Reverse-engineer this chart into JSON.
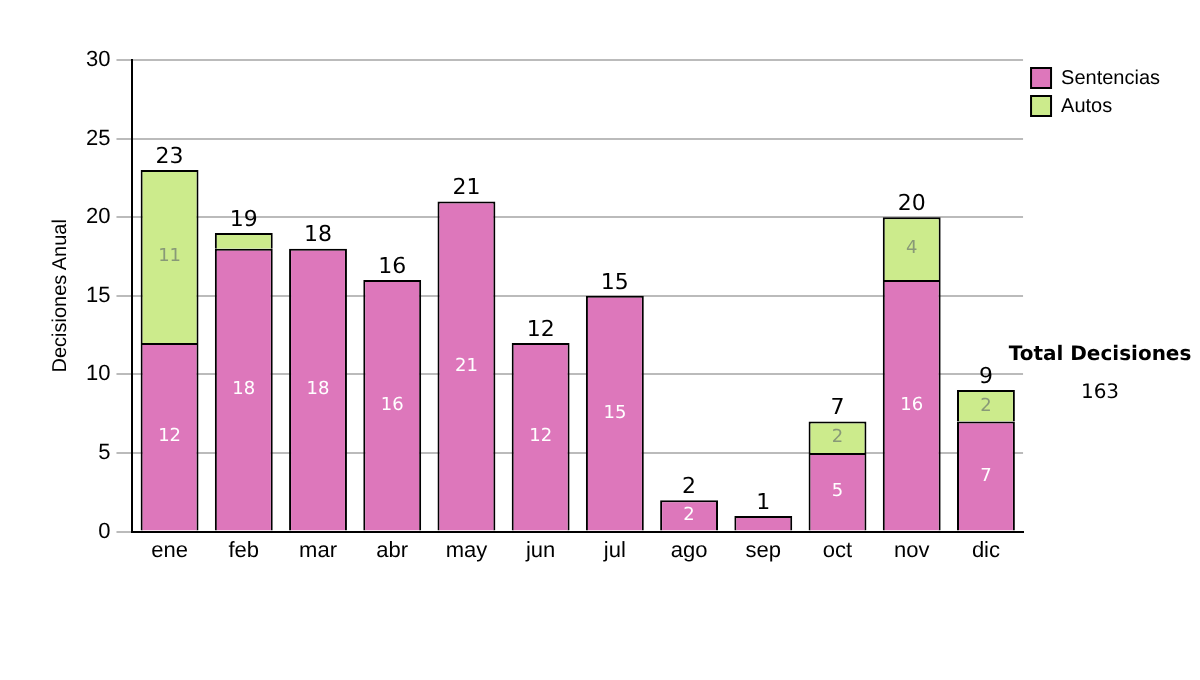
{
  "chart_data": {
    "type": "bar",
    "stacked": true,
    "ylabel": "Decisiones Anual",
    "categories": [
      "ene",
      "feb",
      "mar",
      "abr",
      "may",
      "jun",
      "jul",
      "ago",
      "sep",
      "oct",
      "nov",
      "dic"
    ],
    "series": [
      {
        "name": "Sentencias",
        "color": "#dd77bb",
        "values": [
          12,
          18,
          18,
          16,
          21,
          12,
          15,
          2,
          1,
          5,
          16,
          7
        ],
        "value_labels": [
          "12",
          "18",
          "18",
          "16",
          "21",
          "12",
          "15",
          "2",
          null,
          "5",
          "16",
          "7"
        ]
      },
      {
        "name": "Autos",
        "color": "#cceb8c",
        "values": [
          11,
          1,
          0,
          0,
          0,
          0,
          0,
          0,
          0,
          2,
          4,
          2
        ],
        "value_labels": [
          "11",
          null,
          null,
          null,
          null,
          null,
          null,
          null,
          null,
          "2",
          "4",
          "2"
        ]
      }
    ],
    "totals": [
      "23",
      "19",
      "18",
      "16",
      "21",
      "12",
      "15",
      "2",
      "1",
      "7",
      "20",
      "9"
    ],
    "ylim": [
      0,
      30
    ],
    "yticks": [
      0,
      5,
      10,
      15,
      20,
      25,
      30
    ],
    "grid": "y",
    "legend": "right",
    "annotations": [
      "Total Decisiones",
      "163"
    ]
  }
}
